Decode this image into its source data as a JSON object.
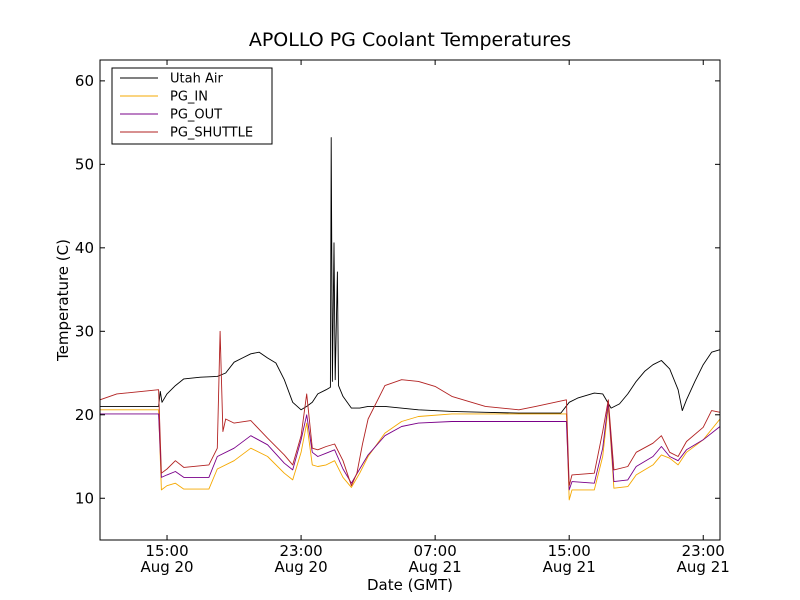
{
  "chart_data": {
    "type": "line",
    "title": "APOLLO PG Coolant Temperatures",
    "xlabel": "Date (GMT)",
    "ylabel": "Temperature (C)",
    "xlim": [
      "2016-08-20T11:00",
      "2016-08-22T00:00"
    ],
    "ylim": [
      5,
      62.5
    ],
    "x_ticks": [
      {
        "at": "2016-08-20T15:00",
        "line1": "15:00",
        "line2": "Aug 20"
      },
      {
        "at": "2016-08-20T23:00",
        "line1": "23:00",
        "line2": "Aug 20"
      },
      {
        "at": "2016-08-21T07:00",
        "line1": "07:00",
        "line2": "Aug 21"
      },
      {
        "at": "2016-08-21T15:00",
        "line1": "15:00",
        "line2": "Aug 21"
      },
      {
        "at": "2016-08-21T23:00",
        "line1": "23:00",
        "line2": "Aug 21"
      }
    ],
    "y_ticks": [
      10,
      20,
      30,
      40,
      50,
      60
    ],
    "grid": false,
    "legend_position": "top-left",
    "series": [
      {
        "name": "Utah Air",
        "color": "#000000",
        "points": [
          [
            "2016-08-20T11:00",
            21.0
          ],
          [
            "2016-08-20T14:30",
            21.0
          ],
          [
            "2016-08-20T14:36",
            22.8
          ],
          [
            "2016-08-20T14:42",
            21.5
          ],
          [
            "2016-08-20T15:00",
            22.5
          ],
          [
            "2016-08-20T15:30",
            23.5
          ],
          [
            "2016-08-20T16:00",
            24.3
          ],
          [
            "2016-08-20T17:00",
            24.5
          ],
          [
            "2016-08-20T18:00",
            24.6
          ],
          [
            "2016-08-20T18:30",
            25.0
          ],
          [
            "2016-08-20T19:00",
            26.3
          ],
          [
            "2016-08-20T19:30",
            26.8
          ],
          [
            "2016-08-20T20:00",
            27.3
          ],
          [
            "2016-08-20T20:30",
            27.5
          ],
          [
            "2016-08-20T21:00",
            26.8
          ],
          [
            "2016-08-20T21:30",
            26.2
          ],
          [
            "2016-08-20T22:00",
            24.2
          ],
          [
            "2016-08-20T22:30",
            21.5
          ],
          [
            "2016-08-20T23:00",
            20.6
          ],
          [
            "2016-08-20T23:20",
            21.0
          ],
          [
            "2016-08-20T23:40",
            21.5
          ],
          [
            "2016-08-21T00:00",
            22.5
          ],
          [
            "2016-08-21T00:30",
            23.0
          ],
          [
            "2016-08-21T00:45",
            23.3
          ],
          [
            "2016-08-21T00:48",
            53.2
          ],
          [
            "2016-08-21T00:52",
            24.0
          ],
          [
            "2016-08-21T00:58",
            40.6
          ],
          [
            "2016-08-21T01:02",
            24.2
          ],
          [
            "2016-08-21T01:10",
            37.1
          ],
          [
            "2016-08-21T01:14",
            23.5
          ],
          [
            "2016-08-21T01:30",
            22.2
          ],
          [
            "2016-08-21T02:00",
            20.8
          ],
          [
            "2016-08-21T02:30",
            20.8
          ],
          [
            "2016-08-21T03:00",
            21.0
          ],
          [
            "2016-08-21T04:00",
            21.0
          ],
          [
            "2016-08-21T06:00",
            20.6
          ],
          [
            "2016-08-21T08:00",
            20.4
          ],
          [
            "2016-08-21T10:00",
            20.3
          ],
          [
            "2016-08-21T12:00",
            20.2
          ],
          [
            "2016-08-21T14:30",
            20.2
          ],
          [
            "2016-08-21T15:00",
            21.5
          ],
          [
            "2016-08-21T15:30",
            22.0
          ],
          [
            "2016-08-21T16:00",
            22.3
          ],
          [
            "2016-08-21T16:30",
            22.6
          ],
          [
            "2016-08-21T17:00",
            22.5
          ],
          [
            "2016-08-21T17:30",
            20.8
          ],
          [
            "2016-08-21T18:00",
            21.3
          ],
          [
            "2016-08-21T18:30",
            22.5
          ],
          [
            "2016-08-21T19:00",
            24.0
          ],
          [
            "2016-08-21T19:30",
            25.2
          ],
          [
            "2016-08-21T20:00",
            26.0
          ],
          [
            "2016-08-21T20:30",
            26.5
          ],
          [
            "2016-08-21T21:00",
            25.5
          ],
          [
            "2016-08-21T21:30",
            23.0
          ],
          [
            "2016-08-21T21:45",
            20.5
          ],
          [
            "2016-08-21T22:00",
            21.8
          ],
          [
            "2016-08-21T22:30",
            24.0
          ],
          [
            "2016-08-21T23:00",
            26.0
          ],
          [
            "2016-08-21T23:30",
            27.5
          ],
          [
            "2016-08-22T00:00",
            27.8
          ]
        ]
      },
      {
        "name": "PG_IN",
        "color": "#f5a800",
        "points": [
          [
            "2016-08-20T11:00",
            20.6
          ],
          [
            "2016-08-20T14:30",
            20.6
          ],
          [
            "2016-08-20T14:40",
            11.0
          ],
          [
            "2016-08-20T15:00",
            11.5
          ],
          [
            "2016-08-20T15:30",
            11.8
          ],
          [
            "2016-08-20T16:00",
            11.1
          ],
          [
            "2016-08-20T17:30",
            11.1
          ],
          [
            "2016-08-20T18:00",
            13.5
          ],
          [
            "2016-08-20T19:00",
            14.5
          ],
          [
            "2016-08-20T20:00",
            16.0
          ],
          [
            "2016-08-20T21:00",
            15.0
          ],
          [
            "2016-08-20T22:00",
            13.0
          ],
          [
            "2016-08-20T22:30",
            12.2
          ],
          [
            "2016-08-20T23:00",
            15.5
          ],
          [
            "2016-08-20T23:20",
            19.0
          ],
          [
            "2016-08-20T23:40",
            14.0
          ],
          [
            "2016-08-21T00:00",
            13.8
          ],
          [
            "2016-08-21T00:30",
            14.0
          ],
          [
            "2016-08-21T01:00",
            14.5
          ],
          [
            "2016-08-21T01:30",
            12.5
          ],
          [
            "2016-08-21T02:00",
            11.3
          ],
          [
            "2016-08-21T02:30",
            13.0
          ],
          [
            "2016-08-21T03:00",
            15.0
          ],
          [
            "2016-08-21T04:00",
            17.8
          ],
          [
            "2016-08-21T05:00",
            19.2
          ],
          [
            "2016-08-21T06:00",
            19.8
          ],
          [
            "2016-08-21T08:00",
            20.1
          ],
          [
            "2016-08-21T12:00",
            20.1
          ],
          [
            "2016-08-21T14:50",
            20.1
          ],
          [
            "2016-08-21T15:00",
            9.8
          ],
          [
            "2016-08-21T15:10",
            11.0
          ],
          [
            "2016-08-21T16:30",
            11.0
          ],
          [
            "2016-08-21T17:00",
            15.0
          ],
          [
            "2016-08-21T17:20",
            21.0
          ],
          [
            "2016-08-21T17:40",
            11.2
          ],
          [
            "2016-08-21T18:30",
            11.4
          ],
          [
            "2016-08-21T19:00",
            12.8
          ],
          [
            "2016-08-21T20:00",
            14.0
          ],
          [
            "2016-08-21T20:30",
            15.2
          ],
          [
            "2016-08-21T21:00",
            14.8
          ],
          [
            "2016-08-21T21:30",
            14.0
          ],
          [
            "2016-08-21T22:00",
            15.5
          ],
          [
            "2016-08-21T23:00",
            17.0
          ],
          [
            "2016-08-22T00:00",
            19.5
          ]
        ]
      },
      {
        "name": "PG_OUT",
        "color": "#7a0089",
        "points": [
          [
            "2016-08-20T11:00",
            20.1
          ],
          [
            "2016-08-20T14:30",
            20.1
          ],
          [
            "2016-08-20T14:40",
            12.5
          ],
          [
            "2016-08-20T15:00",
            12.8
          ],
          [
            "2016-08-20T15:30",
            13.2
          ],
          [
            "2016-08-20T16:00",
            12.5
          ],
          [
            "2016-08-20T17:30",
            12.5
          ],
          [
            "2016-08-20T18:00",
            15.0
          ],
          [
            "2016-08-20T19:00",
            16.0
          ],
          [
            "2016-08-20T20:00",
            17.5
          ],
          [
            "2016-08-20T21:00",
            16.4
          ],
          [
            "2016-08-20T22:00",
            14.2
          ],
          [
            "2016-08-20T22:30",
            13.4
          ],
          [
            "2016-08-20T23:00",
            17.0
          ],
          [
            "2016-08-20T23:20",
            20.0
          ],
          [
            "2016-08-20T23:40",
            15.5
          ],
          [
            "2016-08-21T00:00",
            15.0
          ],
          [
            "2016-08-21T00:30",
            15.4
          ],
          [
            "2016-08-21T01:00",
            15.8
          ],
          [
            "2016-08-21T01:30",
            13.5
          ],
          [
            "2016-08-21T02:00",
            11.8
          ],
          [
            "2016-08-21T02:30",
            13.5
          ],
          [
            "2016-08-21T03:00",
            15.2
          ],
          [
            "2016-08-21T04:00",
            17.5
          ],
          [
            "2016-08-21T05:00",
            18.6
          ],
          [
            "2016-08-21T06:00",
            19.0
          ],
          [
            "2016-08-21T08:00",
            19.2
          ],
          [
            "2016-08-21T12:00",
            19.2
          ],
          [
            "2016-08-21T14:50",
            19.2
          ],
          [
            "2016-08-21T15:00",
            11.0
          ],
          [
            "2016-08-21T15:10",
            12.0
          ],
          [
            "2016-08-21T16:30",
            11.8
          ],
          [
            "2016-08-21T17:00",
            16.0
          ],
          [
            "2016-08-21T17:20",
            21.5
          ],
          [
            "2016-08-21T17:40",
            12.0
          ],
          [
            "2016-08-21T18:30",
            12.2
          ],
          [
            "2016-08-21T19:00",
            13.8
          ],
          [
            "2016-08-21T20:00",
            15.0
          ],
          [
            "2016-08-21T20:30",
            16.2
          ],
          [
            "2016-08-21T21:00",
            15.0
          ],
          [
            "2016-08-21T21:30",
            14.5
          ],
          [
            "2016-08-21T22:00",
            15.8
          ],
          [
            "2016-08-21T23:00",
            17.0
          ],
          [
            "2016-08-22T00:00",
            18.6
          ]
        ]
      },
      {
        "name": "PG_SHUTTLE",
        "color": "#b22222",
        "points": [
          [
            "2016-08-20T11:00",
            21.8
          ],
          [
            "2016-08-20T12:00",
            22.5
          ],
          [
            "2016-08-20T14:00",
            22.9
          ],
          [
            "2016-08-20T14:30",
            23.0
          ],
          [
            "2016-08-20T14:40",
            13.0
          ],
          [
            "2016-08-20T15:00",
            13.5
          ],
          [
            "2016-08-20T15:30",
            14.5
          ],
          [
            "2016-08-20T16:00",
            13.7
          ],
          [
            "2016-08-20T17:30",
            14.0
          ],
          [
            "2016-08-20T18:00",
            16.0
          ],
          [
            "2016-08-20T18:10",
            30.0
          ],
          [
            "2016-08-20T18:20",
            18.0
          ],
          [
            "2016-08-20T18:30",
            19.5
          ],
          [
            "2016-08-20T19:00",
            19.0
          ],
          [
            "2016-08-20T20:00",
            19.3
          ],
          [
            "2016-08-20T21:00",
            17.2
          ],
          [
            "2016-08-20T22:00",
            15.2
          ],
          [
            "2016-08-20T22:30",
            14.0
          ],
          [
            "2016-08-20T23:00",
            17.5
          ],
          [
            "2016-08-20T23:20",
            22.5
          ],
          [
            "2016-08-20T23:40",
            16.0
          ],
          [
            "2016-08-21T00:00",
            15.8
          ],
          [
            "2016-08-21T00:30",
            16.2
          ],
          [
            "2016-08-21T01:00",
            16.5
          ],
          [
            "2016-08-21T01:30",
            14.5
          ],
          [
            "2016-08-21T02:00",
            11.5
          ],
          [
            "2016-08-21T02:20",
            13.0
          ],
          [
            "2016-08-21T02:40",
            16.5
          ],
          [
            "2016-08-21T03:00",
            19.5
          ],
          [
            "2016-08-21T04:00",
            23.5
          ],
          [
            "2016-08-21T05:00",
            24.2
          ],
          [
            "2016-08-21T06:00",
            24.0
          ],
          [
            "2016-08-21T07:00",
            23.4
          ],
          [
            "2016-08-21T08:00",
            22.2
          ],
          [
            "2016-08-21T10:00",
            21.0
          ],
          [
            "2016-08-21T12:00",
            20.6
          ],
          [
            "2016-08-21T13:00",
            21.0
          ],
          [
            "2016-08-21T14:50",
            21.8
          ],
          [
            "2016-08-21T15:00",
            11.5
          ],
          [
            "2016-08-21T15:10",
            12.8
          ],
          [
            "2016-08-21T16:30",
            13.0
          ],
          [
            "2016-08-21T17:00",
            18.0
          ],
          [
            "2016-08-21T17:20",
            21.8
          ],
          [
            "2016-08-21T17:40",
            13.4
          ],
          [
            "2016-08-21T18:30",
            13.8
          ],
          [
            "2016-08-21T19:00",
            15.5
          ],
          [
            "2016-08-21T20:00",
            16.6
          ],
          [
            "2016-08-21T20:30",
            17.5
          ],
          [
            "2016-08-21T21:00",
            15.5
          ],
          [
            "2016-08-21T21:30",
            15.0
          ],
          [
            "2016-08-21T22:00",
            16.8
          ],
          [
            "2016-08-21T23:00",
            18.5
          ],
          [
            "2016-08-21T23:30",
            20.5
          ],
          [
            "2016-08-22T00:00",
            20.3
          ]
        ]
      }
    ]
  }
}
